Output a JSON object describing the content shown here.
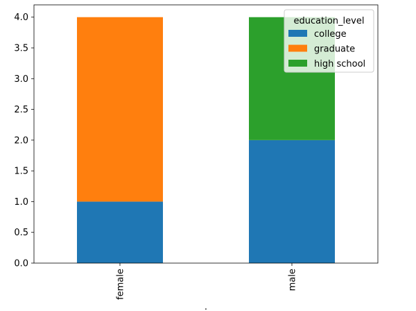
{
  "chart_data": {
    "type": "bar",
    "stacked": true,
    "categories": [
      "female",
      "male"
    ],
    "series": [
      {
        "name": "college",
        "values": [
          1,
          2
        ],
        "color": "#1f77b4"
      },
      {
        "name": "graduate",
        "values": [
          3,
          0
        ],
        "color": "#ff7f0e"
      },
      {
        "name": "high school",
        "values": [
          0,
          2
        ],
        "color": "#2ca02c"
      }
    ],
    "yticks": [
      "0.0",
      "0.5",
      "1.0",
      "1.5",
      "2.0",
      "2.5",
      "3.0",
      "3.5",
      "4.0"
    ],
    "ylim": [
      0,
      4.2
    ],
    "legend": {
      "title": "education_level",
      "placement": "top-right"
    },
    "xlabel": ".",
    "ylabel": "",
    "title": "",
    "grid": false
  }
}
